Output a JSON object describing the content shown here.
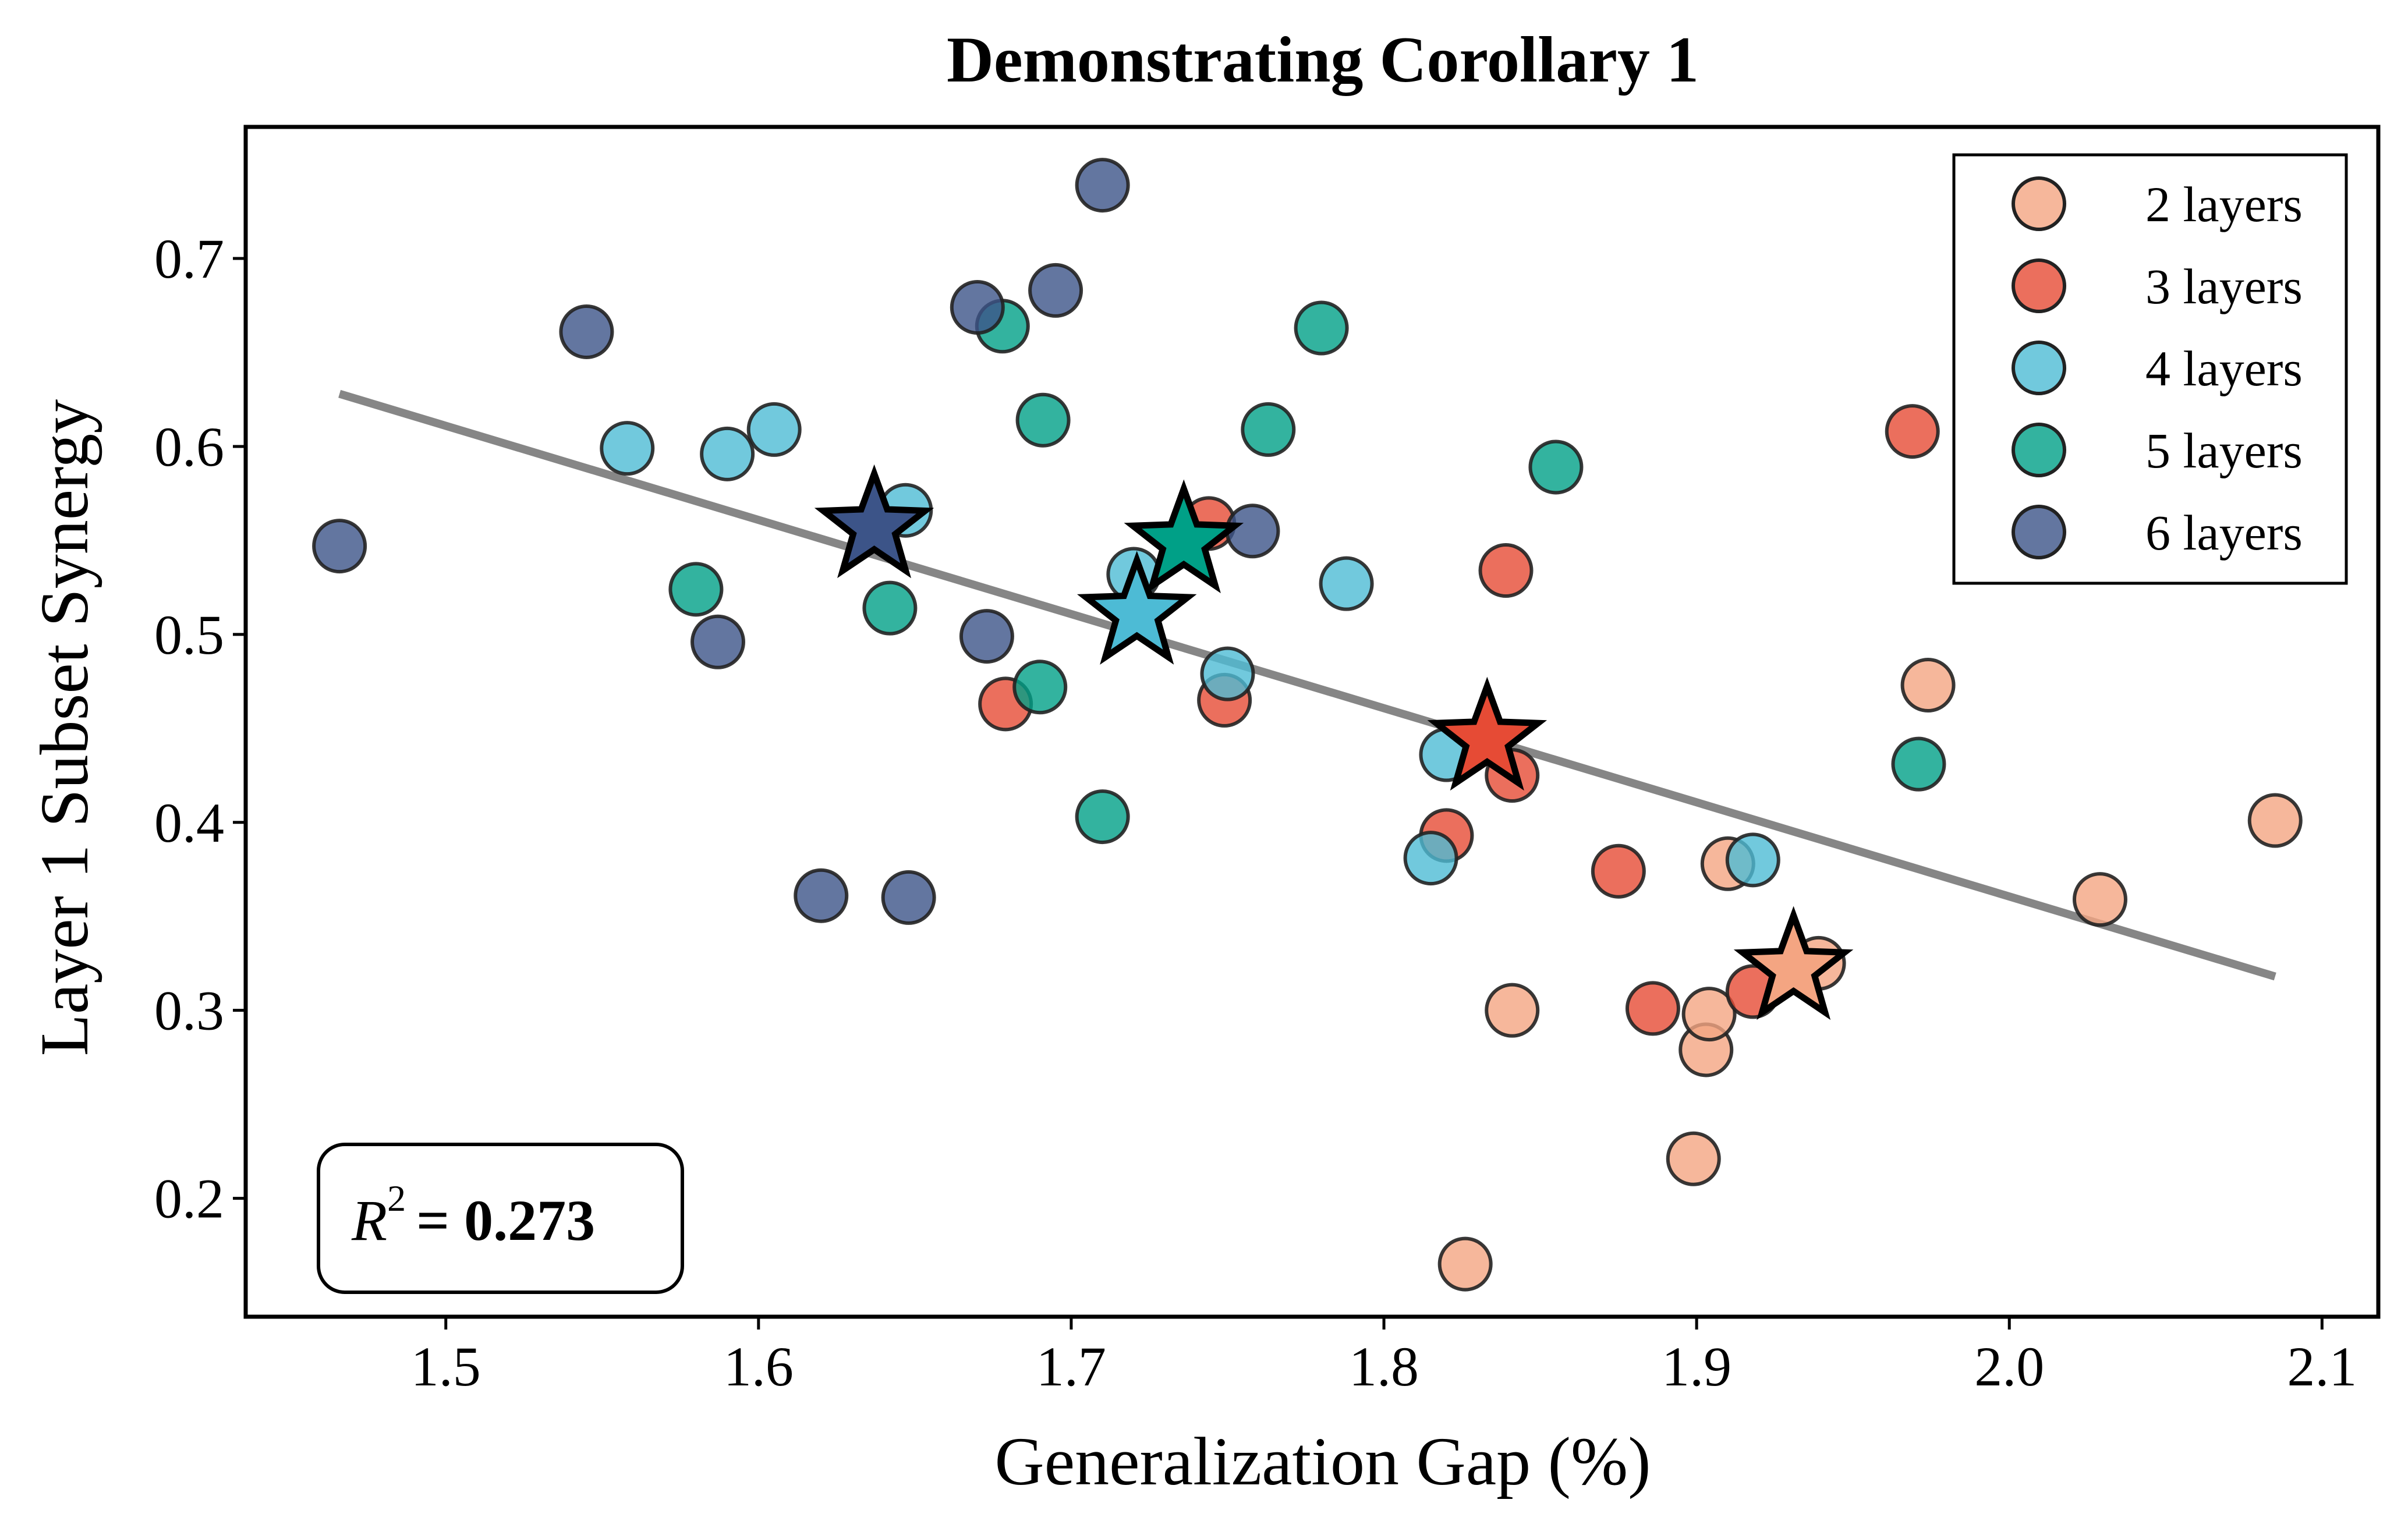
{
  "chart_data": {
    "type": "scatter",
    "title": "Demonstrating Corollary 1",
    "xlabel": "Generalization Gap (%)",
    "ylabel": "Layer 1 Subset Synergy",
    "xlim": [
      1.436,
      2.118
    ],
    "ylim": [
      0.137,
      0.77
    ],
    "xticks": [
      1.5,
      1.6,
      1.7,
      1.8,
      1.9,
      2.0,
      2.1
    ],
    "xtick_labels": [
      "1.5",
      "1.6",
      "1.7",
      "1.8",
      "1.9",
      "2.0",
      "2.1"
    ],
    "yticks": [
      0.2,
      0.3,
      0.4,
      0.5,
      0.6,
      0.7
    ],
    "ytick_labels": [
      "0.2",
      "0.3",
      "0.4",
      "0.5",
      "0.6",
      "0.7"
    ],
    "grid": false,
    "legend_position": "top-right",
    "annotation": {
      "r_label": "R",
      "r_exp": "2",
      "equals": "= ",
      "value": "0.273"
    },
    "trend_line": {
      "x": [
        1.466,
        2.085
      ],
      "y": [
        0.628,
        0.318
      ],
      "color": "#808080"
    },
    "series": [
      {
        "name": "2 layers",
        "color": "#F4A582",
        "points": [
          [
            1.826,
            0.165
          ],
          [
            1.899,
            0.221
          ],
          [
            1.841,
            0.3
          ],
          [
            1.903,
            0.279
          ],
          [
            1.904,
            0.298
          ],
          [
            1.91,
            0.378
          ],
          [
            1.939,
            0.325
          ],
          [
            1.974,
            0.473
          ],
          [
            2.029,
            0.359
          ],
          [
            2.085,
            0.401
          ]
        ],
        "mean": [
          1.931,
          0.322
        ]
      },
      {
        "name": "3 layers",
        "color": "#E64B35",
        "points": [
          [
            1.679,
            0.463
          ],
          [
            1.749,
            0.465
          ],
          [
            1.744,
            0.559
          ],
          [
            1.82,
            0.393
          ],
          [
            1.841,
            0.425
          ],
          [
            1.839,
            0.534
          ],
          [
            1.875,
            0.374
          ],
          [
            1.886,
            0.301
          ],
          [
            1.918,
            0.31
          ],
          [
            1.969,
            0.608
          ]
        ],
        "mean": [
          1.833,
          0.444
        ]
      },
      {
        "name": "4 layers",
        "color": "#4DBBD5",
        "points": [
          [
            1.558,
            0.599
          ],
          [
            1.59,
            0.596
          ],
          [
            1.605,
            0.609
          ],
          [
            1.647,
            0.566
          ],
          [
            1.72,
            0.532
          ],
          [
            1.75,
            0.479
          ],
          [
            1.788,
            0.527
          ],
          [
            1.82,
            0.436
          ],
          [
            1.815,
            0.381
          ],
          [
            1.918,
            0.38
          ]
        ],
        "mean": [
          1.721,
          0.511
        ]
      },
      {
        "name": "5 layers",
        "color": "#00A087",
        "points": [
          [
            1.58,
            0.524
          ],
          [
            1.642,
            0.514
          ],
          [
            1.678,
            0.664
          ],
          [
            1.691,
            0.614
          ],
          [
            1.69,
            0.472
          ],
          [
            1.71,
            0.403
          ],
          [
            1.763,
            0.609
          ],
          [
            1.78,
            0.663
          ],
          [
            1.855,
            0.589
          ],
          [
            1.971,
            0.431
          ]
        ],
        "mean": [
          1.736,
          0.549
        ]
      },
      {
        "name": "6 layers",
        "color": "#3C5488",
        "points": [
          [
            1.466,
            0.547
          ],
          [
            1.545,
            0.661
          ],
          [
            1.587,
            0.496
          ],
          [
            1.62,
            0.361
          ],
          [
            1.648,
            0.36
          ],
          [
            1.67,
            0.674
          ],
          [
            1.673,
            0.499
          ],
          [
            1.695,
            0.683
          ],
          [
            1.71,
            0.739
          ],
          [
            1.758,
            0.555
          ]
        ],
        "mean": [
          1.637,
          0.557
        ]
      }
    ]
  }
}
